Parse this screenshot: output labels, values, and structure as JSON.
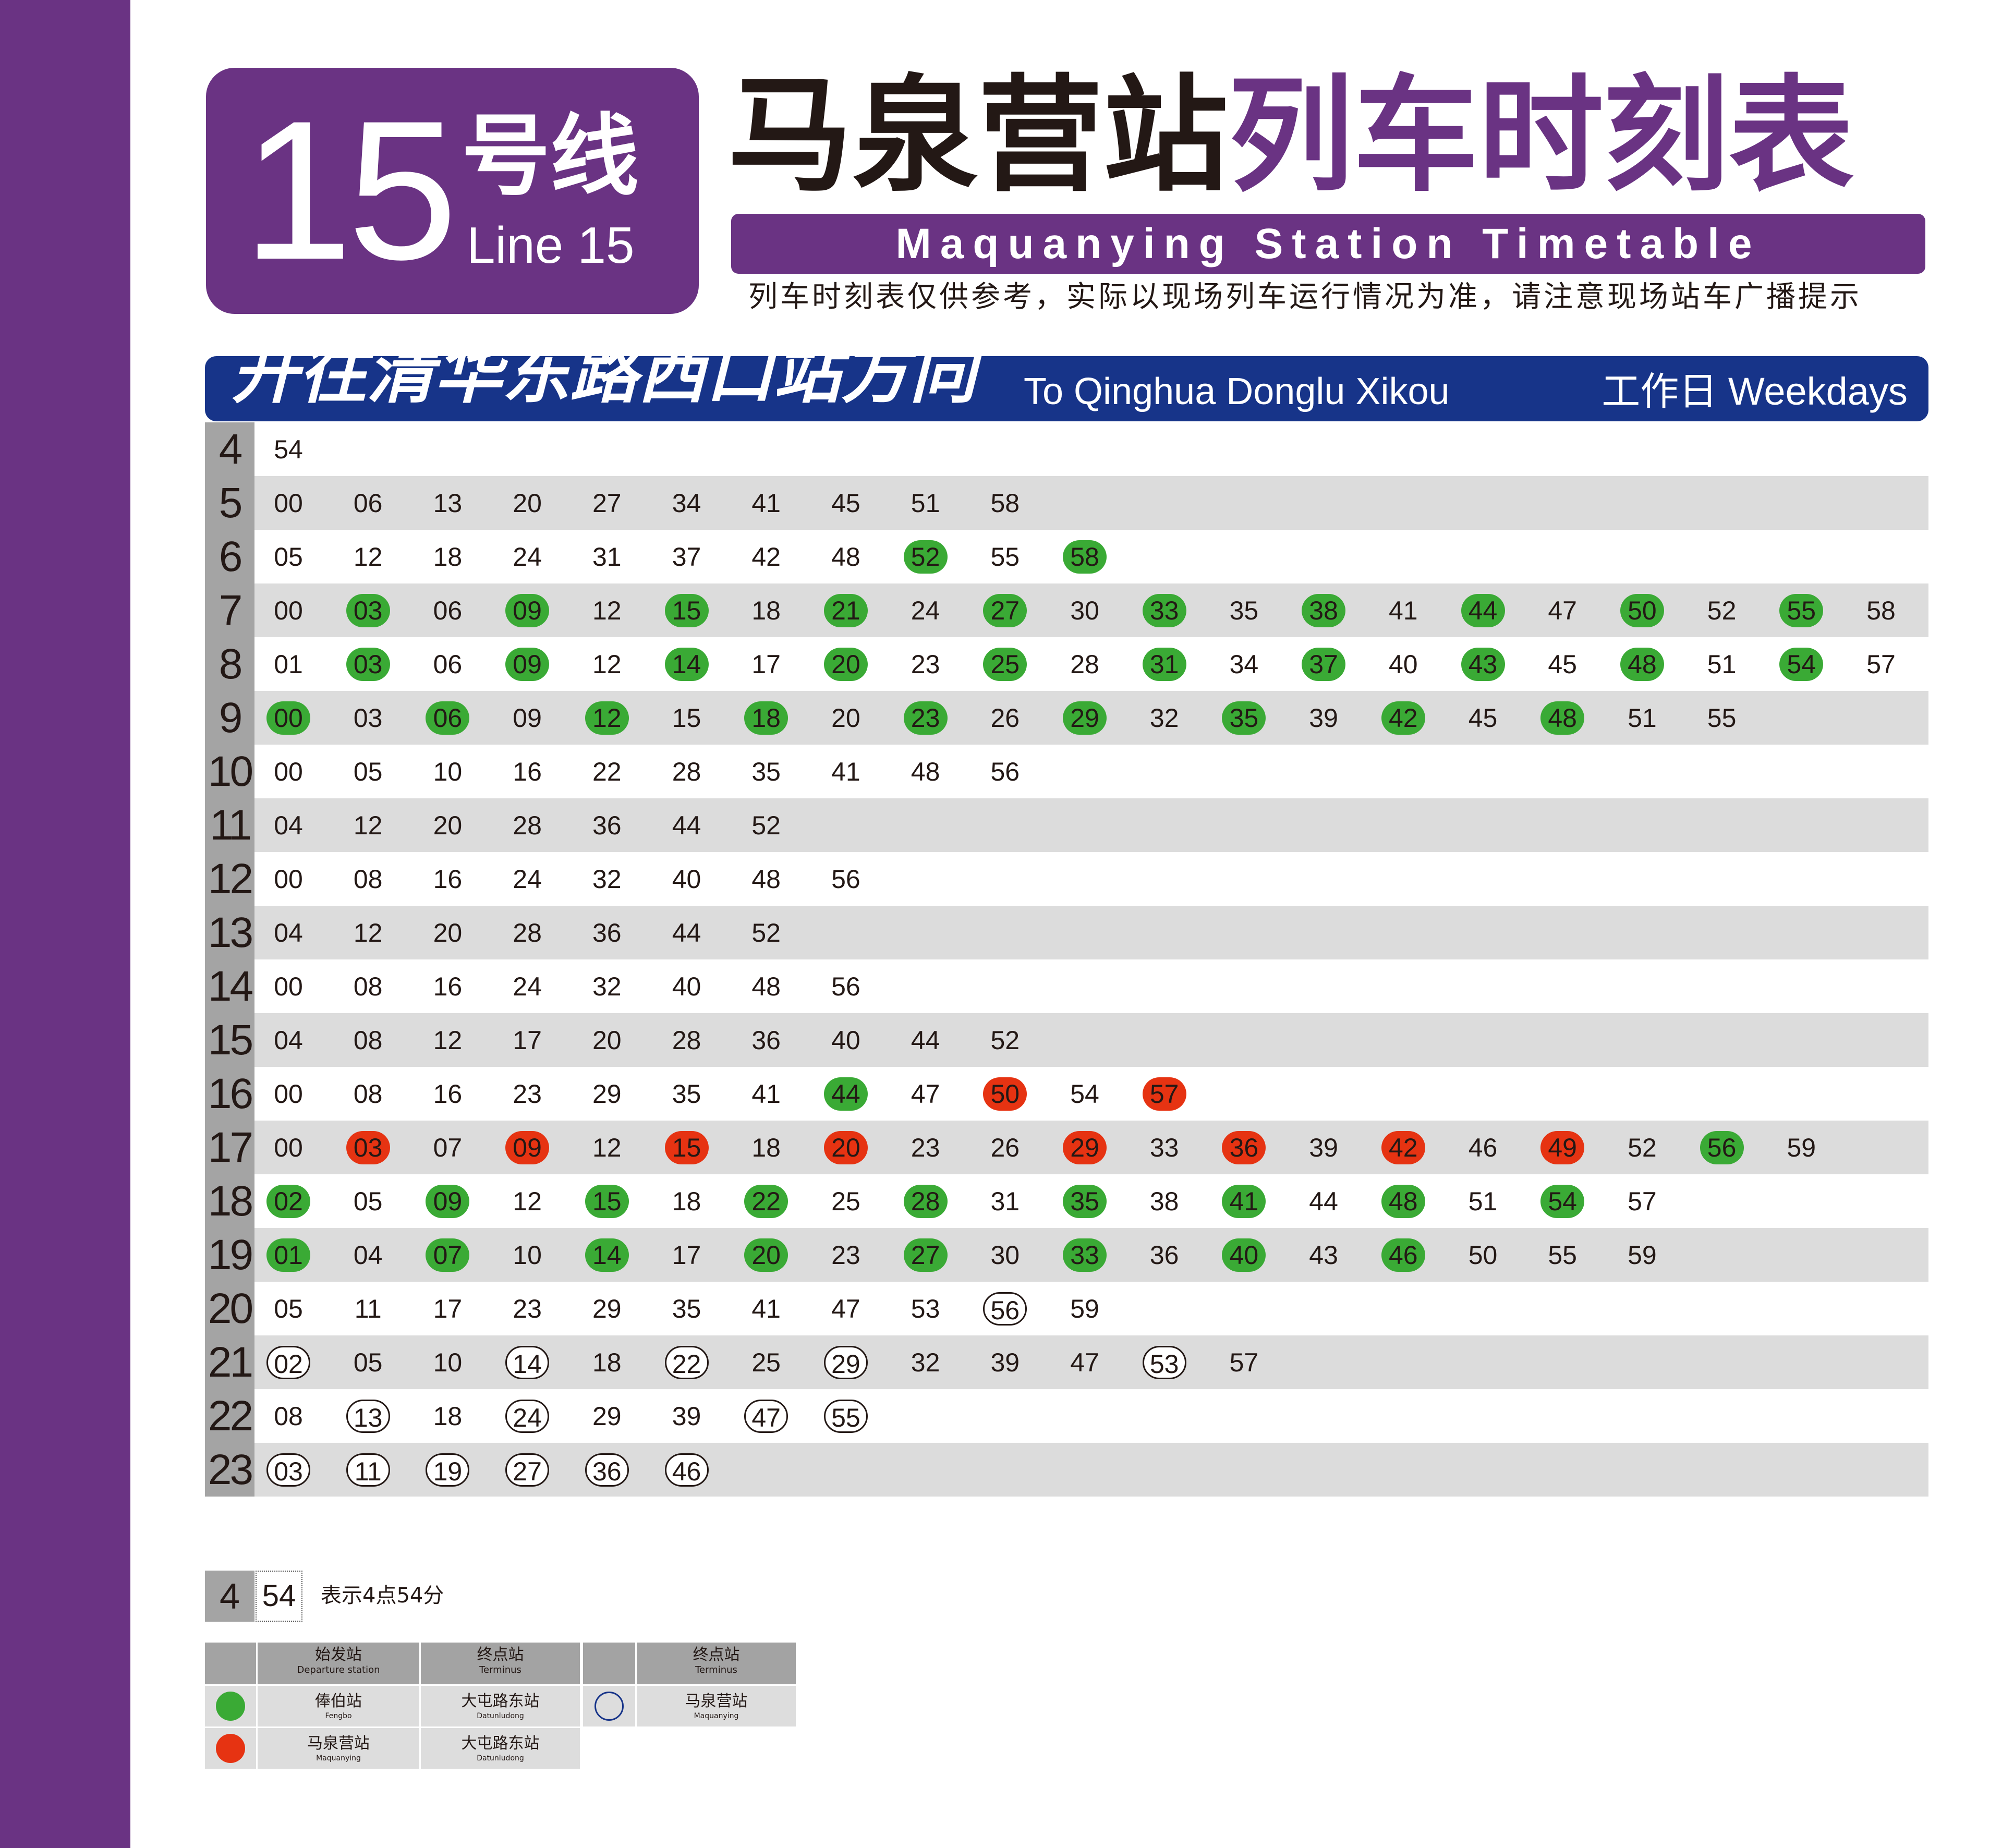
{
  "header": {
    "line_number": "15",
    "line_cn": "号线",
    "line_en": "Line 15",
    "title_station": "马泉营站",
    "title_suffix": "列车时刻表",
    "title_en": "Maquanying Station Timetable",
    "notice": "列车时刻表仅供参考，实际以现场列车运行情况为准，请注意现场站车广播提示"
  },
  "direction": {
    "cn": "开往清华东路西口站方向",
    "en": "To Qinghua Donglu Xikou",
    "day": "工作日 Weekdays"
  },
  "colors": {
    "line_purple": "#6a3383",
    "direction_blue": "#173489",
    "green_marker": "#3aaa35",
    "red_marker": "#e63312"
  },
  "timetable": [
    {
      "hour": "4",
      "minutes": [
        [
          "54",
          ""
        ]
      ]
    },
    {
      "hour": "5",
      "minutes": [
        [
          "00",
          ""
        ],
        [
          "06",
          ""
        ],
        [
          "13",
          ""
        ],
        [
          "20",
          ""
        ],
        [
          "27",
          ""
        ],
        [
          "34",
          ""
        ],
        [
          "41",
          ""
        ],
        [
          "45",
          ""
        ],
        [
          "51",
          ""
        ],
        [
          "58",
          ""
        ]
      ]
    },
    {
      "hour": "6",
      "minutes": [
        [
          "05",
          ""
        ],
        [
          "12",
          ""
        ],
        [
          "18",
          ""
        ],
        [
          "24",
          ""
        ],
        [
          "31",
          ""
        ],
        [
          "37",
          ""
        ],
        [
          "42",
          ""
        ],
        [
          "48",
          ""
        ],
        [
          "52",
          "g"
        ],
        [
          "55",
          ""
        ],
        [
          "58",
          "g"
        ]
      ]
    },
    {
      "hour": "7",
      "minutes": [
        [
          "00",
          ""
        ],
        [
          "03",
          "g"
        ],
        [
          "06",
          ""
        ],
        [
          "09",
          "g"
        ],
        [
          "12",
          ""
        ],
        [
          "15",
          "g"
        ],
        [
          "18",
          ""
        ],
        [
          "21",
          "g"
        ],
        [
          "24",
          ""
        ],
        [
          "27",
          "g"
        ],
        [
          "30",
          ""
        ],
        [
          "33",
          "g"
        ],
        [
          "35",
          ""
        ],
        [
          "38",
          "g"
        ],
        [
          "41",
          ""
        ],
        [
          "44",
          "g"
        ],
        [
          "47",
          ""
        ],
        [
          "50",
          "g"
        ],
        [
          "52",
          ""
        ],
        [
          "55",
          "g"
        ],
        [
          "58",
          ""
        ]
      ]
    },
    {
      "hour": "8",
      "minutes": [
        [
          "01",
          ""
        ],
        [
          "03",
          "g"
        ],
        [
          "06",
          ""
        ],
        [
          "09",
          "g"
        ],
        [
          "12",
          ""
        ],
        [
          "14",
          "g"
        ],
        [
          "17",
          ""
        ],
        [
          "20",
          "g"
        ],
        [
          "23",
          ""
        ],
        [
          "25",
          "g"
        ],
        [
          "28",
          ""
        ],
        [
          "31",
          "g"
        ],
        [
          "34",
          ""
        ],
        [
          "37",
          "g"
        ],
        [
          "40",
          ""
        ],
        [
          "43",
          "g"
        ],
        [
          "45",
          ""
        ],
        [
          "48",
          "g"
        ],
        [
          "51",
          ""
        ],
        [
          "54",
          "g"
        ],
        [
          "57",
          ""
        ]
      ]
    },
    {
      "hour": "9",
      "minutes": [
        [
          "00",
          "g"
        ],
        [
          "03",
          ""
        ],
        [
          "06",
          "g"
        ],
        [
          "09",
          ""
        ],
        [
          "12",
          "g"
        ],
        [
          "15",
          ""
        ],
        [
          "18",
          "g"
        ],
        [
          "20",
          ""
        ],
        [
          "23",
          "g"
        ],
        [
          "26",
          ""
        ],
        [
          "29",
          "g"
        ],
        [
          "32",
          ""
        ],
        [
          "35",
          "g"
        ],
        [
          "39",
          ""
        ],
        [
          "42",
          "g"
        ],
        [
          "45",
          ""
        ],
        [
          "48",
          "g"
        ],
        [
          "51",
          ""
        ],
        [
          "55",
          ""
        ]
      ]
    },
    {
      "hour": "10",
      "minutes": [
        [
          "00",
          ""
        ],
        [
          "05",
          ""
        ],
        [
          "10",
          ""
        ],
        [
          "16",
          ""
        ],
        [
          "22",
          ""
        ],
        [
          "28",
          ""
        ],
        [
          "35",
          ""
        ],
        [
          "41",
          ""
        ],
        [
          "48",
          ""
        ],
        [
          "56",
          ""
        ]
      ]
    },
    {
      "hour": "11",
      "minutes": [
        [
          "04",
          ""
        ],
        [
          "12",
          ""
        ],
        [
          "20",
          ""
        ],
        [
          "28",
          ""
        ],
        [
          "36",
          ""
        ],
        [
          "44",
          ""
        ],
        [
          "52",
          ""
        ]
      ]
    },
    {
      "hour": "12",
      "minutes": [
        [
          "00",
          ""
        ],
        [
          "08",
          ""
        ],
        [
          "16",
          ""
        ],
        [
          "24",
          ""
        ],
        [
          "32",
          ""
        ],
        [
          "40",
          ""
        ],
        [
          "48",
          ""
        ],
        [
          "56",
          ""
        ]
      ]
    },
    {
      "hour": "13",
      "minutes": [
        [
          "04",
          ""
        ],
        [
          "12",
          ""
        ],
        [
          "20",
          ""
        ],
        [
          "28",
          ""
        ],
        [
          "36",
          ""
        ],
        [
          "44",
          ""
        ],
        [
          "52",
          ""
        ]
      ]
    },
    {
      "hour": "14",
      "minutes": [
        [
          "00",
          ""
        ],
        [
          "08",
          ""
        ],
        [
          "16",
          ""
        ],
        [
          "24",
          ""
        ],
        [
          "32",
          ""
        ],
        [
          "40",
          ""
        ],
        [
          "48",
          ""
        ],
        [
          "56",
          ""
        ]
      ]
    },
    {
      "hour": "15",
      "minutes": [
        [
          "04",
          ""
        ],
        [
          "08",
          ""
        ],
        [
          "12",
          ""
        ],
        [
          "17",
          ""
        ],
        [
          "20",
          ""
        ],
        [
          "28",
          ""
        ],
        [
          "36",
          ""
        ],
        [
          "40",
          ""
        ],
        [
          "44",
          ""
        ],
        [
          "52",
          ""
        ]
      ]
    },
    {
      "hour": "16",
      "minutes": [
        [
          "00",
          ""
        ],
        [
          "08",
          ""
        ],
        [
          "16",
          ""
        ],
        [
          "23",
          ""
        ],
        [
          "29",
          ""
        ],
        [
          "35",
          ""
        ],
        [
          "41",
          ""
        ],
        [
          "44",
          "g"
        ],
        [
          "47",
          ""
        ],
        [
          "50",
          "r"
        ],
        [
          "54",
          ""
        ],
        [
          "57",
          "r"
        ]
      ]
    },
    {
      "hour": "17",
      "minutes": [
        [
          "00",
          ""
        ],
        [
          "03",
          "r"
        ],
        [
          "07",
          ""
        ],
        [
          "09",
          "r"
        ],
        [
          "12",
          ""
        ],
        [
          "15",
          "r"
        ],
        [
          "18",
          ""
        ],
        [
          "20",
          "r"
        ],
        [
          "23",
          ""
        ],
        [
          "26",
          ""
        ],
        [
          "29",
          "r"
        ],
        [
          "33",
          ""
        ],
        [
          "36",
          "r"
        ],
        [
          "39",
          ""
        ],
        [
          "42",
          "r"
        ],
        [
          "46",
          ""
        ],
        [
          "49",
          "r"
        ],
        [
          "52",
          ""
        ],
        [
          "56",
          "g"
        ],
        [
          "59",
          ""
        ]
      ]
    },
    {
      "hour": "18",
      "minutes": [
        [
          "02",
          "g"
        ],
        [
          "05",
          ""
        ],
        [
          "09",
          "g"
        ],
        [
          "12",
          ""
        ],
        [
          "15",
          "g"
        ],
        [
          "18",
          ""
        ],
        [
          "22",
          "g"
        ],
        [
          "25",
          ""
        ],
        [
          "28",
          "g"
        ],
        [
          "31",
          ""
        ],
        [
          "35",
          "g"
        ],
        [
          "38",
          ""
        ],
        [
          "41",
          "g"
        ],
        [
          "44",
          ""
        ],
        [
          "48",
          "g"
        ],
        [
          "51",
          ""
        ],
        [
          "54",
          "g"
        ],
        [
          "57",
          ""
        ]
      ]
    },
    {
      "hour": "19",
      "minutes": [
        [
          "01",
          "g"
        ],
        [
          "04",
          ""
        ],
        [
          "07",
          "g"
        ],
        [
          "10",
          ""
        ],
        [
          "14",
          "g"
        ],
        [
          "17",
          ""
        ],
        [
          "20",
          "g"
        ],
        [
          "23",
          ""
        ],
        [
          "27",
          "g"
        ],
        [
          "30",
          ""
        ],
        [
          "33",
          "g"
        ],
        [
          "36",
          ""
        ],
        [
          "40",
          "g"
        ],
        [
          "43",
          ""
        ],
        [
          "46",
          "g"
        ],
        [
          "50",
          ""
        ],
        [
          "55",
          ""
        ],
        [
          "59",
          ""
        ]
      ]
    },
    {
      "hour": "20",
      "minutes": [
        [
          "05",
          ""
        ],
        [
          "11",
          ""
        ],
        [
          "17",
          ""
        ],
        [
          "23",
          ""
        ],
        [
          "29",
          ""
        ],
        [
          "35",
          ""
        ],
        [
          "41",
          ""
        ],
        [
          "47",
          ""
        ],
        [
          "53",
          ""
        ],
        [
          "56",
          "o"
        ],
        [
          "59",
          ""
        ]
      ]
    },
    {
      "hour": "21",
      "minutes": [
        [
          "02",
          "o"
        ],
        [
          "05",
          ""
        ],
        [
          "10",
          ""
        ],
        [
          "14",
          "o"
        ],
        [
          "18",
          ""
        ],
        [
          "22",
          "o"
        ],
        [
          "25",
          ""
        ],
        [
          "29",
          "o"
        ],
        [
          "32",
          ""
        ],
        [
          "39",
          ""
        ],
        [
          "47",
          ""
        ],
        [
          "53",
          "o"
        ],
        [
          "57",
          ""
        ]
      ]
    },
    {
      "hour": "22",
      "minutes": [
        [
          "08",
          ""
        ],
        [
          "13",
          "o"
        ],
        [
          "18",
          ""
        ],
        [
          "24",
          "o"
        ],
        [
          "29",
          ""
        ],
        [
          "39",
          ""
        ],
        [
          "47",
          "o"
        ],
        [
          "55",
          "o"
        ]
      ]
    },
    {
      "hour": "23",
      "minutes": [
        [
          "03",
          "o"
        ],
        [
          "11",
          "o"
        ],
        [
          "19",
          "o"
        ],
        [
          "27",
          "o"
        ],
        [
          "36",
          "o"
        ],
        [
          "46",
          "o"
        ]
      ]
    }
  ],
  "example": {
    "hour": "4",
    "minute": "54",
    "description": "表示4点54分"
  },
  "legend": {
    "departure_cn": "始发站",
    "departure_en": "Departure station",
    "terminus_cn": "终点站",
    "terminus_en": "Terminus",
    "terminus2_cn": "终点站",
    "terminus2_en": "Terminus",
    "green_departure_cn": "俸伯站",
    "green_departure_en": "Fengbo",
    "green_terminus_cn": "大屯路东站",
    "green_terminus_en": "Datunludong",
    "red_departure_cn": "马泉营站",
    "red_departure_en": "Maquanying",
    "red_terminus_cn": "大屯路东站",
    "red_terminus_en": "Datunludong",
    "circle_terminus_cn": "马泉营站",
    "circle_terminus_en": "Maquanying"
  }
}
